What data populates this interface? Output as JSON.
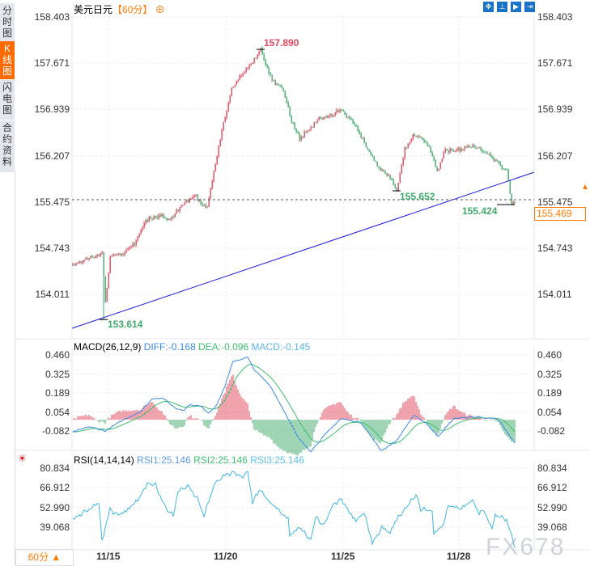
{
  "sidebar": {
    "tabs": [
      {
        "label": "分时图"
      },
      {
        "label": "K线图",
        "active": true
      },
      {
        "label": "闪电图"
      },
      {
        "label": "合约资料"
      }
    ]
  },
  "header": {
    "symbol": "美元日元",
    "period": "【60分】",
    "toolbar_icons": [
      "crosshair-icon",
      "range-icon",
      "play-icon",
      "exit-icon"
    ]
  },
  "colors": {
    "up": "#e0475b",
    "down": "#3fa86a",
    "trend": "#1a1adf",
    "accent": "#ff7a00",
    "diff": "#3d8be8",
    "dea": "#3fbf6f",
    "rsi": "#3fb6e6"
  },
  "current_price": "155.469",
  "period_selector": {
    "label": "60分 ▲"
  },
  "watermark": "FX678",
  "chart_data": [
    {
      "type": "candlestick",
      "title": "美元日元",
      "y_ticks": [
        "158.403",
        "157.671",
        "156.939",
        "156.207",
        "155.475",
        "154.743",
        "154.011"
      ],
      "ylim": [
        153.45,
        158.5
      ],
      "annotations": {
        "high": "157.890",
        "low": "153.614",
        "swing_low": "155.652",
        "last_low": "155.424"
      },
      "price_path": [
        [
          0,
          154.485
        ],
        [
          10,
          154.575
        ],
        [
          18,
          154.678
        ],
        [
          19,
          153.614
        ],
        [
          23,
          154.613
        ],
        [
          30,
          154.65
        ],
        [
          38,
          154.807
        ],
        [
          45,
          155.193
        ],
        [
          53,
          155.258
        ],
        [
          60,
          155.193
        ],
        [
          68,
          155.451
        ],
        [
          75,
          155.58
        ],
        [
          83,
          155.387
        ],
        [
          88,
          156.096
        ],
        [
          93,
          156.74
        ],
        [
          98,
          157.256
        ],
        [
          105,
          157.514
        ],
        [
          110,
          157.642
        ],
        [
          116,
          157.89
        ],
        [
          123,
          157.4
        ],
        [
          130,
          157.256
        ],
        [
          135,
          156.74
        ],
        [
          140,
          156.482
        ],
        [
          145,
          156.611
        ],
        [
          153,
          156.805
        ],
        [
          160,
          156.869
        ],
        [
          165,
          156.934
        ],
        [
          173,
          156.74
        ],
        [
          180,
          156.418
        ],
        [
          188,
          156.031
        ],
        [
          195,
          155.902
        ],
        [
          200,
          155.652
        ],
        [
          205,
          156.289
        ],
        [
          210,
          156.547
        ],
        [
          215,
          156.48
        ],
        [
          220,
          156.353
        ],
        [
          225,
          155.967
        ],
        [
          230,
          156.289
        ],
        [
          238,
          156.3
        ],
        [
          245,
          156.353
        ],
        [
          253,
          156.289
        ],
        [
          260,
          156.16
        ],
        [
          268,
          155.967
        ],
        [
          271,
          155.424
        ],
        [
          273,
          155.469
        ]
      ],
      "x_ticks": [
        {
          "bar": 22,
          "label": "11/15"
        },
        {
          "bar": 94.5,
          "label": "11/20"
        },
        {
          "bar": 167,
          "label": "11/25"
        },
        {
          "bar": 238.5,
          "label": "11/28"
        }
      ]
    },
    {
      "type": "line",
      "title": "MACD(26,12,9)",
      "legend": {
        "diff": "DIFF:-0.168",
        "dea": "DEA:-0.096",
        "macd": "MACD:-0.145"
      },
      "y_ticks": [
        "0.460",
        "0.325",
        "0.189",
        "0.054",
        "-0.082"
      ],
      "diff_path": [
        [
          1.5,
          -0.082
        ],
        [
          10,
          -0.05
        ],
        [
          20,
          -0.08
        ],
        [
          30,
          -0.009
        ],
        [
          42,
          0.06
        ],
        [
          49.5,
          0.153
        ],
        [
          55.5,
          0.153
        ],
        [
          64,
          0.078
        ],
        [
          69,
          0.07
        ],
        [
          72,
          0.107
        ],
        [
          79,
          0.095
        ],
        [
          84,
          0.049
        ],
        [
          89,
          0.107
        ],
        [
          94,
          0.24
        ],
        [
          99,
          0.414
        ],
        [
          108,
          0.443
        ],
        [
          112,
          0.356
        ],
        [
          122,
          0.24
        ],
        [
          132,
          0.031
        ],
        [
          139,
          -0.125
        ],
        [
          147,
          -0.224
        ],
        [
          155.5,
          -0.11
        ],
        [
          165.5,
          0.008
        ],
        [
          178,
          -0.02
        ],
        [
          190.5,
          -0.22
        ],
        [
          200,
          -0.15
        ],
        [
          210.5,
          0.03
        ],
        [
          218,
          -0.02
        ],
        [
          225.5,
          -0.12
        ],
        [
          235.5,
          0.01
        ],
        [
          250.5,
          0.02
        ],
        [
          263,
          0.0
        ],
        [
          273,
          -0.168
        ]
      ]
    },
    {
      "type": "line",
      "title": "RSI(14,14,14)",
      "legend": {
        "rsi1": "RSI1:25.146",
        "rsi2": "RSI2:25.146",
        "rsi3": "RSI3:25.146"
      },
      "y_ticks": [
        "80.834",
        "66.912",
        "52.990",
        "39.068"
      ],
      "rsi_path": [
        [
          1,
          45.9
        ],
        [
          16,
          55.6
        ],
        [
          18,
          29.8
        ],
        [
          23,
          51.6
        ],
        [
          28,
          47.6
        ],
        [
          40,
          57.3
        ],
        [
          46,
          70.5
        ],
        [
          51,
          68.8
        ],
        [
          58,
          51.6
        ],
        [
          62,
          47.0
        ],
        [
          65,
          64.8
        ],
        [
          72,
          67.7
        ],
        [
          77,
          59.1
        ],
        [
          81,
          47.0
        ],
        [
          88,
          70.5
        ],
        [
          95,
          76.2
        ],
        [
          99,
          78.5
        ],
        [
          105,
          74.5
        ],
        [
          108,
          78.5
        ],
        [
          111,
          57.3
        ],
        [
          116,
          64.8
        ],
        [
          121,
          57.3
        ],
        [
          128,
          49.9
        ],
        [
          133,
          44.2
        ],
        [
          134,
          32.7
        ],
        [
          140,
          38.4
        ],
        [
          147,
          30.4
        ],
        [
          150,
          45.9
        ],
        [
          155,
          40.2
        ],
        [
          161,
          55.6
        ],
        [
          166,
          59.1
        ],
        [
          170,
          51.6
        ],
        [
          175,
          44.2
        ],
        [
          180,
          48.7
        ],
        [
          185,
          28.7
        ],
        [
          191,
          38.4
        ],
        [
          196,
          34.4
        ],
        [
          201,
          45.9
        ],
        [
          208,
          55.6
        ],
        [
          212,
          61.9
        ],
        [
          215,
          51.6
        ],
        [
          222,
          50.5
        ],
        [
          223,
          35.6
        ],
        [
          229,
          40.2
        ],
        [
          232,
          54.5
        ],
        [
          240,
          51.6
        ],
        [
          247,
          58.5
        ],
        [
          251,
          48.7
        ],
        [
          253,
          52.7
        ],
        [
          259,
          38.4
        ],
        [
          261,
          47.0
        ],
        [
          268,
          44.7
        ],
        [
          273,
          25.146
        ]
      ]
    }
  ]
}
